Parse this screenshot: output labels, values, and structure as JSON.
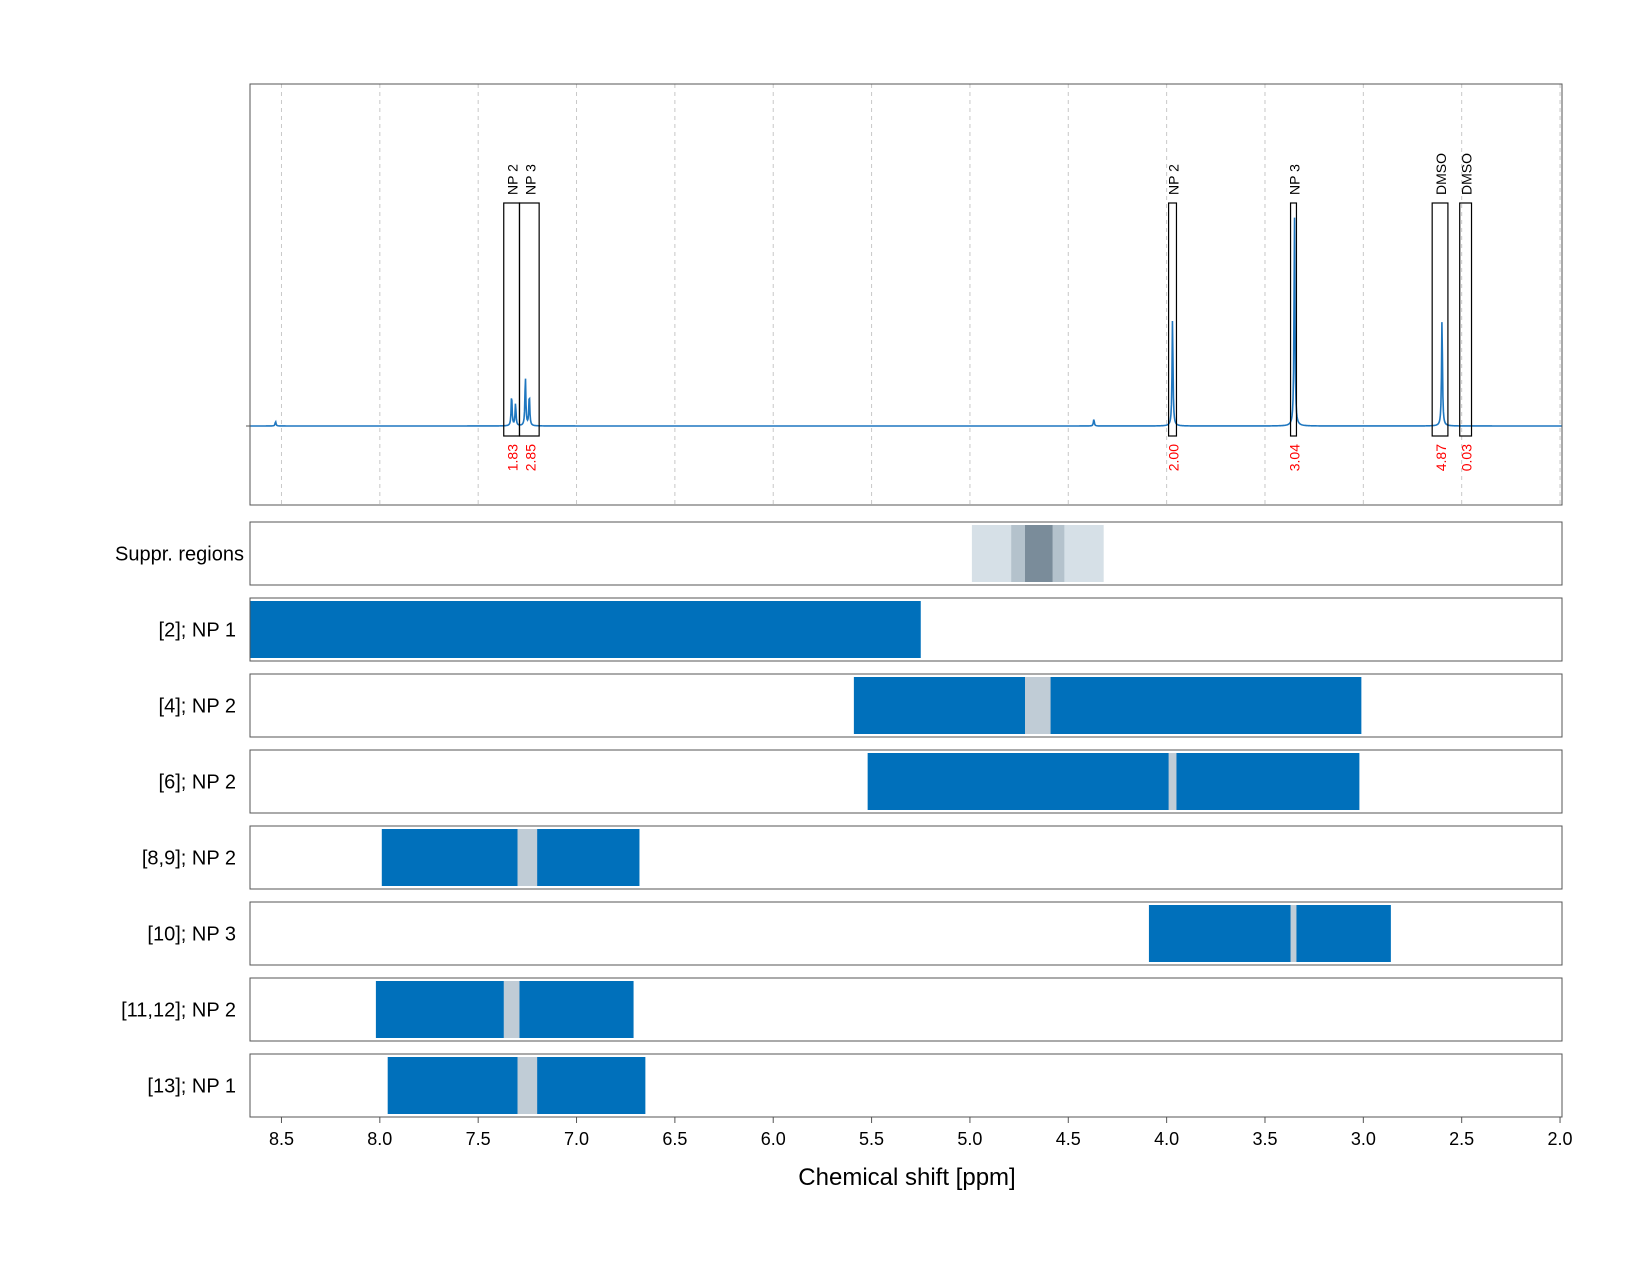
{
  "chart_data": {
    "type": "nmr-spectrum-with-tracks",
    "xlabel": "Chemical shift [ppm]",
    "xlim": [
      8.66,
      1.99
    ],
    "x_reversed": true,
    "x_ticks": [
      8.5,
      8.0,
      7.5,
      7.0,
      6.5,
      6.0,
      5.5,
      5.0,
      4.5,
      4.0,
      3.5,
      3.0,
      2.5,
      2.0
    ],
    "x_tick_labels": [
      "8.5",
      "8.0",
      "7.5",
      "7.0",
      "6.5",
      "6.0",
      "5.5",
      "5.0",
      "4.5",
      "4.0",
      "3.5",
      "3.0",
      "2.5",
      "2.0"
    ],
    "grid": "vertical-dashed",
    "colors": {
      "spectrum": "#1f77c0",
      "band": "#0070bb",
      "excluded": "#c0ccd6",
      "supp_light": "#d6e0e7",
      "supp_mid": "#b4c2cc",
      "supp_dark": "#7a8c9a",
      "integral_label": "#ff0000"
    },
    "peaks": [
      {
        "ppm": 8.53,
        "height": 0.02
      },
      {
        "ppm": 7.33,
        "height": 0.14
      },
      {
        "ppm": 7.31,
        "height": 0.1
      },
      {
        "ppm": 7.26,
        "height": 0.22
      },
      {
        "ppm": 7.24,
        "height": 0.14
      },
      {
        "ppm": 4.37,
        "height": 0.03
      },
      {
        "ppm": 3.97,
        "height": 0.48
      },
      {
        "ppm": 3.35,
        "height": 0.94
      },
      {
        "ppm": 2.6,
        "height": 0.48
      }
    ],
    "integration_regions": [
      {
        "label": "NP 2",
        "from": 7.37,
        "to": 7.29,
        "integral": "1.83"
      },
      {
        "label": "NP 3",
        "from": 7.29,
        "to": 7.19,
        "integral": "2.85"
      },
      {
        "label": "NP 2",
        "from": 3.99,
        "to": 3.95,
        "integral": "2.00"
      },
      {
        "label": "NP 3",
        "from": 3.37,
        "to": 3.34,
        "integral": "3.04"
      },
      {
        "label": "DMSO",
        "from": 2.65,
        "to": 2.57,
        "integral": "4.87"
      },
      {
        "label": "DMSO",
        "from": 2.51,
        "to": 2.45,
        "integral": "0.03"
      }
    ],
    "suppression": {
      "label": "Suppr. regions",
      "layers": [
        {
          "from": 4.99,
          "to": 4.32,
          "tone": "light"
        },
        {
          "from": 4.79,
          "to": 4.52,
          "tone": "mid"
        },
        {
          "from": 4.72,
          "to": 4.58,
          "tone": "dark"
        }
      ]
    },
    "tracks": [
      {
        "label": "[2]; NP 1",
        "from": 8.66,
        "to": 5.25,
        "gaps": []
      },
      {
        "label": "[4]; NP 2",
        "from": 5.59,
        "to": 3.01,
        "gaps": [
          [
            4.72,
            4.59
          ]
        ]
      },
      {
        "label": "[6]; NP 2",
        "from": 5.52,
        "to": 3.02,
        "gaps": [
          [
            3.99,
            3.95
          ]
        ]
      },
      {
        "label": "[8,9]; NP 2",
        "from": 7.99,
        "to": 6.68,
        "gaps": [
          [
            7.3,
            7.2
          ]
        ]
      },
      {
        "label": "[10]; NP 3",
        "from": 4.09,
        "to": 2.86,
        "gaps": [
          [
            3.37,
            3.34
          ]
        ]
      },
      {
        "label": "[11,12]; NP 2",
        "from": 8.02,
        "to": 6.71,
        "gaps": [
          [
            7.37,
            7.29
          ]
        ]
      },
      {
        "label": "[13]; NP 1",
        "from": 7.96,
        "to": 6.65,
        "gaps": [
          [
            7.3,
            7.2
          ]
        ]
      }
    ]
  }
}
